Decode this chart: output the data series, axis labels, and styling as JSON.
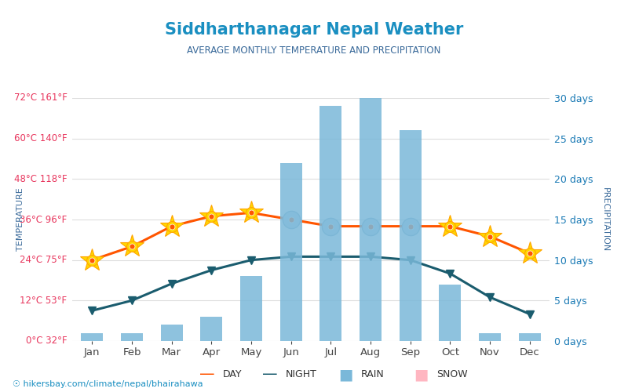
{
  "title": "Siddharthanagar Nepal Weather",
  "subtitle": "AVERAGE MONTHLY TEMPERATURE AND PRECIPITATION",
  "months": [
    "Jan",
    "Feb",
    "Mar",
    "Apr",
    "May",
    "Jun",
    "Jul",
    "Aug",
    "Sep",
    "Oct",
    "Nov",
    "Dec"
  ],
  "day_temps": [
    24,
    28,
    34,
    37,
    38,
    36,
    34,
    34,
    34,
    34,
    31,
    26
  ],
  "night_temps": [
    9,
    12,
    17,
    21,
    24,
    25,
    25,
    25,
    24,
    20,
    13,
    8
  ],
  "rain_days": [
    1,
    1,
    2,
    3,
    8,
    22,
    29,
    30,
    26,
    7,
    1,
    1
  ],
  "snow_days": [
    0,
    0,
    0,
    0,
    0,
    0,
    0,
    0,
    0,
    0,
    0,
    0
  ],
  "left_yticks_c": [
    0,
    12,
    24,
    36,
    48,
    60,
    72
  ],
  "left_yticks_f": [
    32,
    53,
    75,
    96,
    118,
    140,
    161
  ],
  "right_yticks_days": [
    0,
    5,
    10,
    15,
    20,
    25,
    30
  ],
  "temp_min_c": 0,
  "temp_max_c": 72,
  "precip_min_days": 0,
  "precip_max_days": 30,
  "title_color": "#1a8fc1",
  "subtitle_color": "#3a6a9a",
  "left_tick_color": "#e8365d",
  "right_tick_color": "#1a7ab5",
  "bar_color": "#7ab8d9",
  "bar_alpha": 0.85,
  "day_line_color": "#ff5500",
  "night_line_color": "#1a5c6e",
  "background_color": "#ffffff",
  "grid_color": "#dddddd",
  "url_text": "hikersbay.com/climate/nepal/bhairahawa",
  "left_label": "TEMPERATURE",
  "right_label": "PRECIPITATION",
  "sun_months": [
    0,
    1,
    2,
    3,
    4,
    9,
    10,
    11
  ],
  "cloud_months": [
    5,
    6,
    7,
    8
  ]
}
